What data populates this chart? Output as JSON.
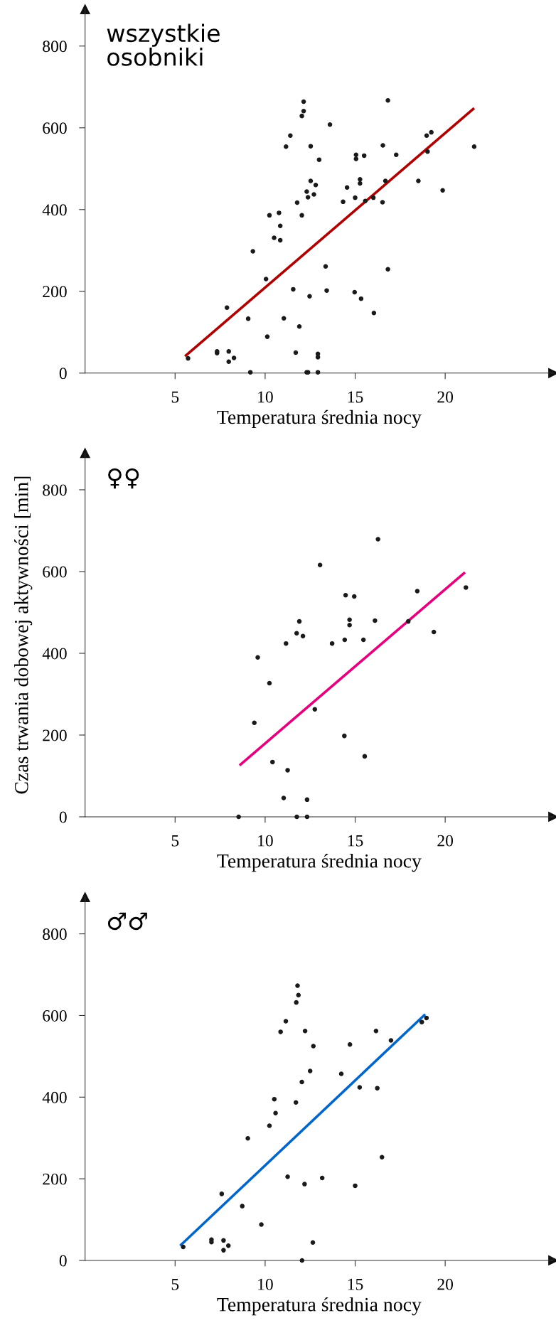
{
  "chart_data": [
    {
      "type": "scatter",
      "xlabel": "Temperatura średnia nocy",
      "annotations": [
        "wszystkie\nosobniki"
      ],
      "xlim": [
        0,
        26
      ],
      "ylim": [
        0,
        890
      ],
      "xticks": [
        5,
        10,
        15,
        20
      ],
      "yticks": [
        0,
        200,
        400,
        600,
        800
      ],
      "grid": false,
      "legend": false,
      "series": [
        {
          "marker": "circle",
          "color": "#1a1a1a",
          "x": [
            5.72,
            7.33,
            7.33,
            7.98,
            7.98,
            8.27,
            7.88,
            9.06,
            9.18,
            9.32,
            10.05,
            10.12,
            10.24,
            10.5,
            10.77,
            10.84,
            10.84,
            11.04,
            11.16,
            11.4,
            11.56,
            11.7,
            11.78,
            11.9,
            12.04,
            12.04,
            12.14,
            12.14,
            12.31,
            12.38,
            12.31,
            12.38,
            12.47,
            12.53,
            12.53,
            12.71,
            12.81,
            12.93,
            12.93,
            12.93,
            13.0,
            13.36,
            13.42,
            13.6,
            14.33,
            14.55,
            14.97,
            15.0,
            15.05,
            15.05,
            15.27,
            15.27,
            15.33,
            15.5,
            15.56,
            16.01,
            16.04,
            16.52,
            16.54,
            16.68,
            16.82,
            16.82,
            17.28,
            18.51,
            18.97,
            19.23,
            19.02,
            19.86,
            21.61
          ],
          "values": [
            36,
            53,
            49,
            53,
            28,
            37,
            160,
            133,
            2,
            298,
            230,
            89,
            386,
            331,
            392,
            360,
            325,
            134,
            554,
            581,
            205,
            50,
            417,
            114,
            386,
            629,
            641,
            664,
            444,
            430,
            2,
            2,
            188,
            470,
            555,
            437,
            460,
            47,
            39,
            2,
            522,
            261,
            202,
            608,
            419,
            454,
            198,
            429,
            534,
            524,
            474,
            464,
            182,
            532,
            421,
            429,
            147,
            418,
            557,
            470,
            667,
            254,
            534,
            470,
            581,
            589,
            542,
            447,
            554
          ]
        },
        {
          "type": "line",
          "marker": "none",
          "color": "#b00000",
          "x": [
            5.55,
            21.61
          ],
          "values": [
            41,
            648
          ]
        }
      ]
    },
    {
      "type": "scatter",
      "xlabel": "Temperatura średnia nocy",
      "ylabel": "Czas trwania dobowej aktywności [min]",
      "annotations": [
        "♀♀"
      ],
      "xlim": [
        0,
        26
      ],
      "ylim": [
        0,
        890
      ],
      "xticks": [
        5,
        10,
        15,
        20
      ],
      "yticks": [
        0,
        200,
        400,
        600,
        800
      ],
      "grid": false,
      "legend": false,
      "series": [
        {
          "marker": "circle",
          "color": "#1a1a1a",
          "x": [
            8.53,
            9.4,
            9.59,
            10.24,
            10.41,
            11.03,
            11.16,
            11.25,
            11.75,
            11.76,
            11.9,
            12.1,
            12.33,
            12.33,
            12.76,
            13.05,
            13.72,
            14.4,
            14.42,
            14.47,
            14.69,
            14.69,
            14.95,
            15.46,
            15.53,
            16.1,
            16.27,
            17.95,
            18.45,
            19.37,
            21.15
          ],
          "values": [
            0,
            230,
            390,
            327,
            134,
            46,
            424,
            114,
            449,
            0,
            478,
            442,
            42,
            0,
            263,
            616,
            424,
            198,
            433,
            542,
            482,
            469,
            539,
            433,
            148,
            480,
            679,
            478,
            552,
            452,
            561
          ]
        },
        {
          "type": "line",
          "marker": "none",
          "color": "#e6007e",
          "x": [
            8.58,
            21.1
          ],
          "values": [
            126,
            598
          ]
        }
      ]
    },
    {
      "type": "scatter",
      "xlabel": "Temperatura średnia nocy",
      "annotations": [
        "♂♂"
      ],
      "xlim": [
        0,
        26
      ],
      "ylim": [
        0,
        890
      ],
      "xticks": [
        5,
        10,
        15,
        20
      ],
      "yticks": [
        0,
        200,
        400,
        600,
        800
      ],
      "grid": false,
      "legend": false,
      "series": [
        {
          "marker": "circle",
          "color": "#1a1a1a",
          "x": [
            5.45,
            7.02,
            7.02,
            7.59,
            7.69,
            7.69,
            7.96,
            8.73,
            9.04,
            9.79,
            10.24,
            10.51,
            10.58,
            10.86,
            11.15,
            11.25,
            11.71,
            11.73,
            11.8,
            11.85,
            12.04,
            12.05,
            12.19,
            12.22,
            12.5,
            12.65,
            12.68,
            13.17,
            14.23,
            14.71,
            15.0,
            15.25,
            16.16,
            16.23,
            16.49,
            16.99,
            18.7,
            18.96
          ],
          "values": [
            33,
            51,
            45,
            163,
            49,
            25,
            36,
            133,
            299,
            88,
            330,
            395,
            361,
            560,
            586,
            205,
            387,
            632,
            673,
            650,
            437,
            0,
            187,
            562,
            464,
            44,
            525,
            202,
            457,
            529,
            183,
            424,
            562,
            422,
            253,
            539,
            584,
            594
          ]
        },
        {
          "type": "line",
          "marker": "none",
          "color": "#0066cc",
          "x": [
            5.28,
            18.89
          ],
          "values": [
            36,
            603
          ]
        }
      ]
    }
  ]
}
